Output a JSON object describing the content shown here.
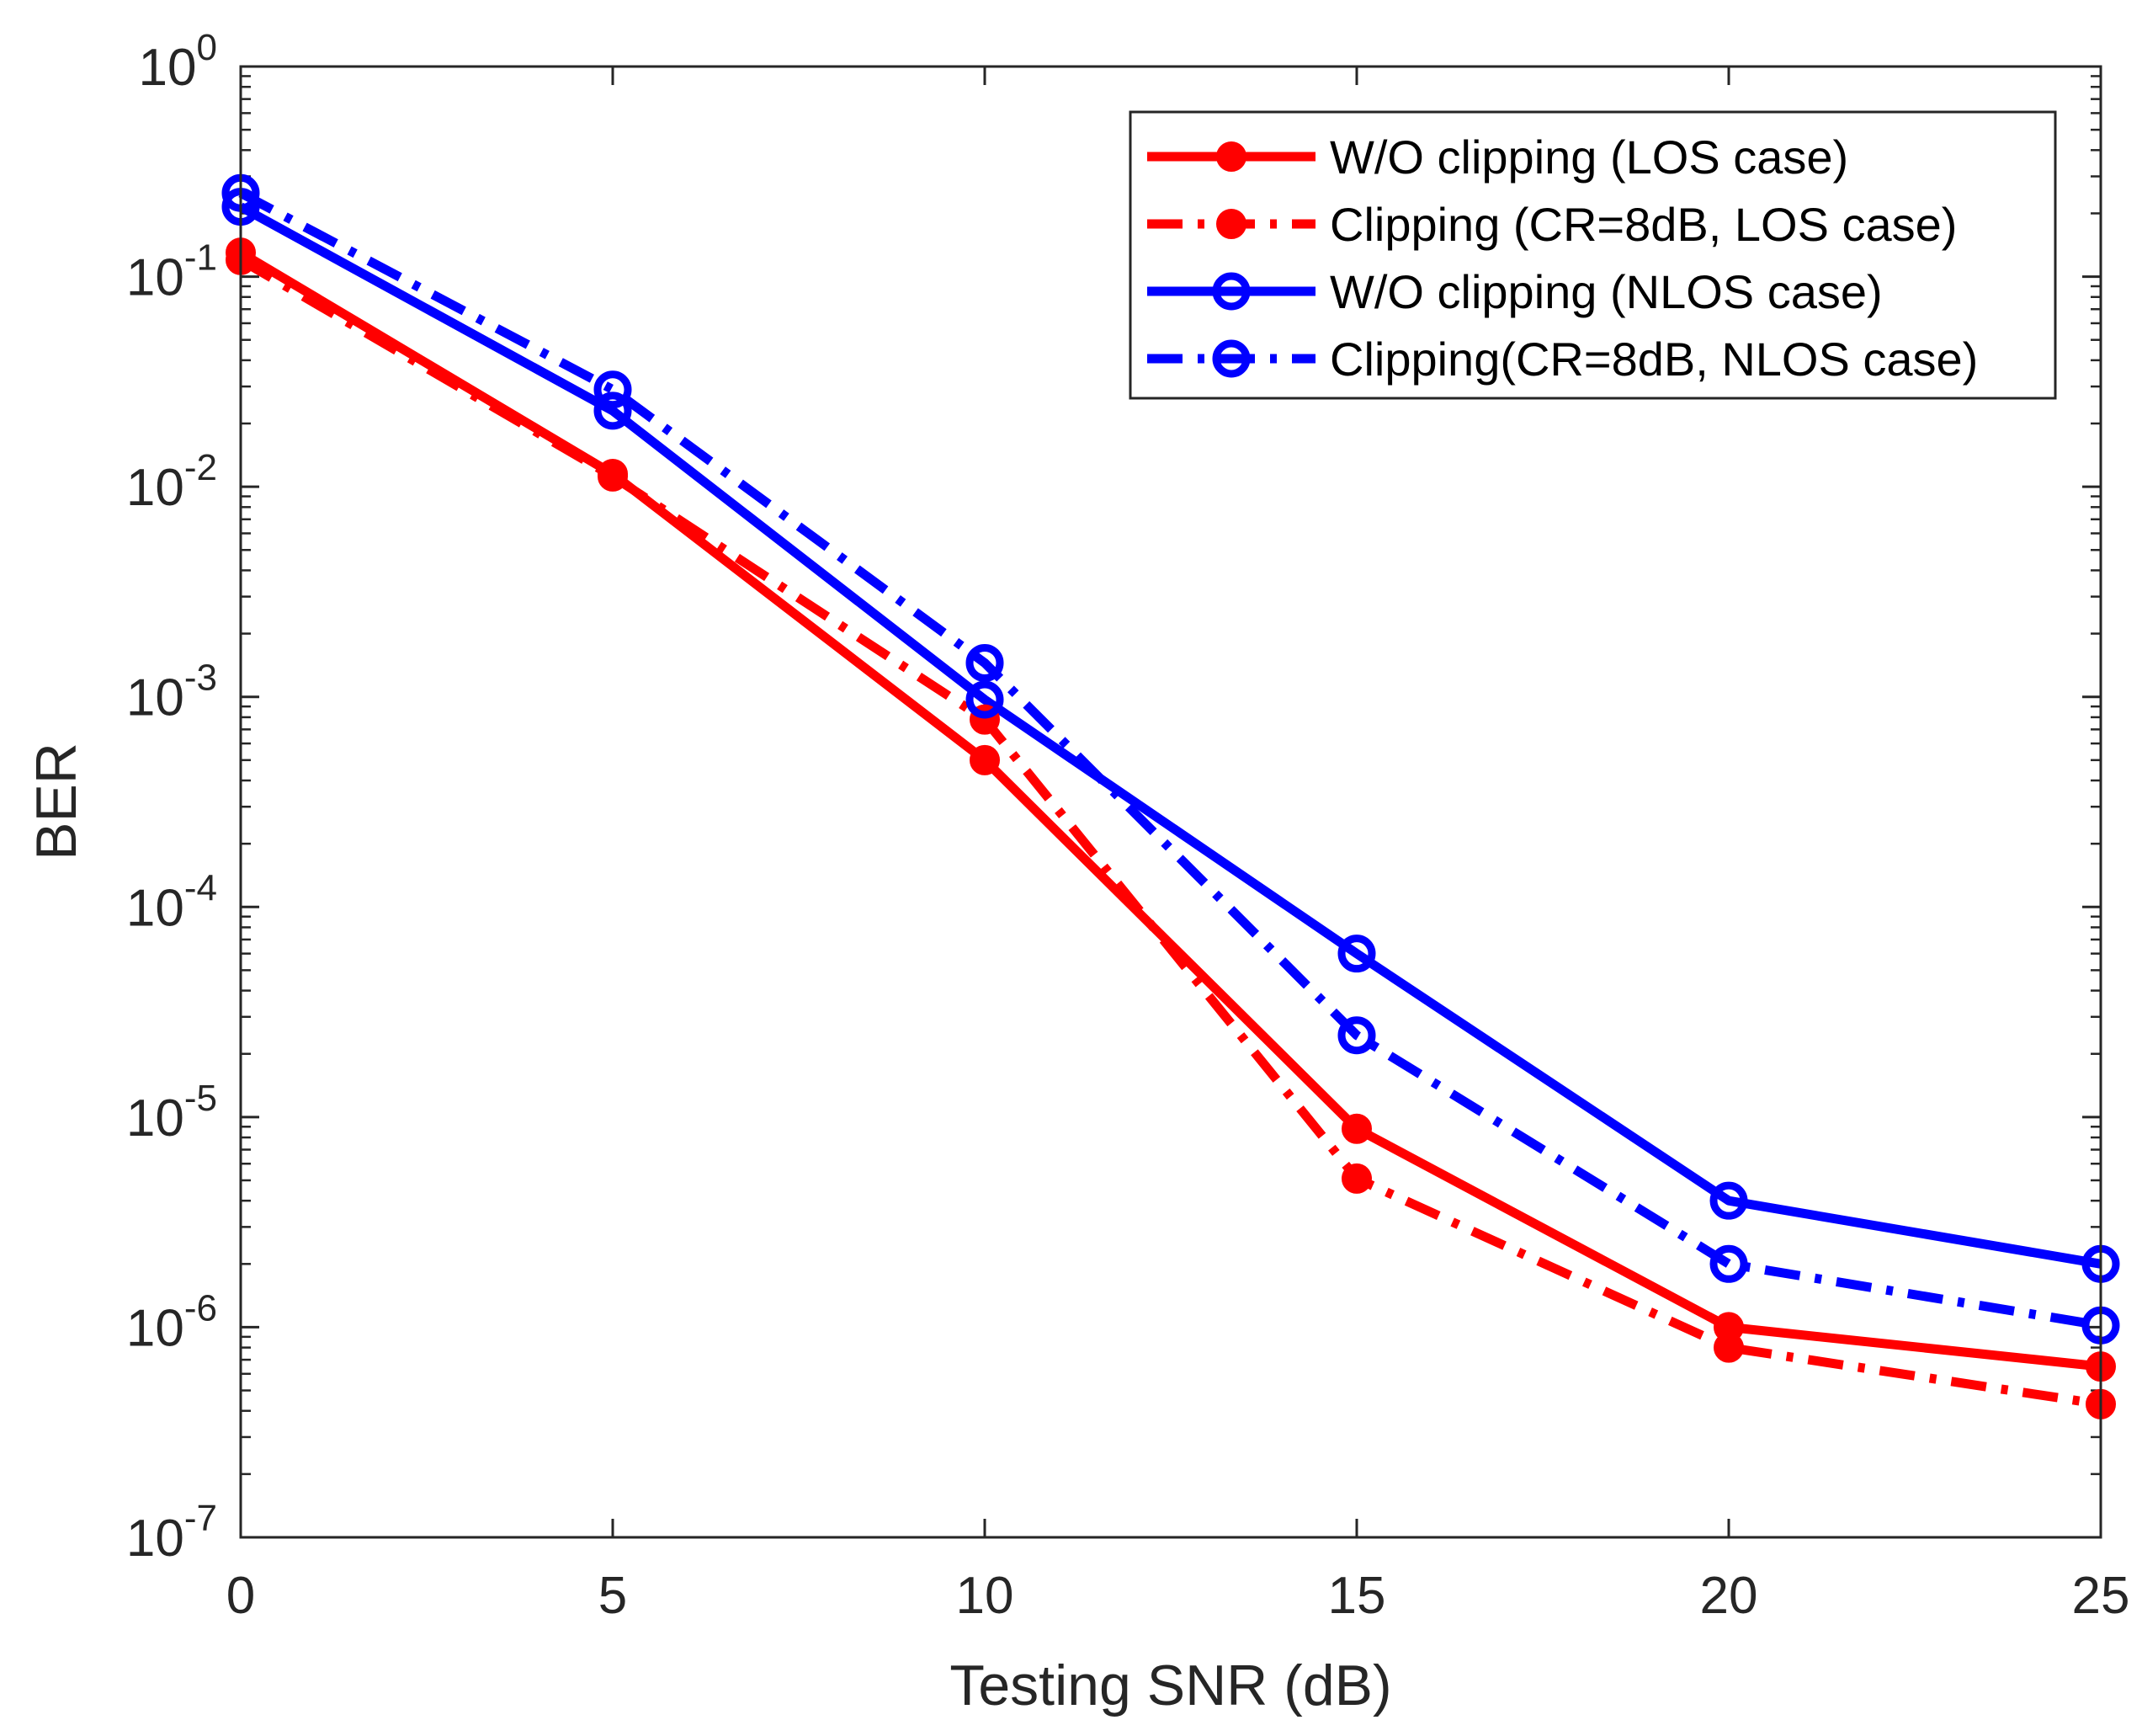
{
  "chart_data": {
    "type": "line",
    "title": "",
    "xlabel": "Testing SNR (dB)",
    "ylabel": "BER",
    "yscale": "log",
    "xlim": [
      0,
      25
    ],
    "ylim": [
      1e-07,
      1
    ],
    "xticks": [
      0,
      5,
      10,
      15,
      20,
      25
    ],
    "yticks": [
      {
        "value": 1,
        "base": "10",
        "exp": "0"
      },
      {
        "value": 0.1,
        "base": "10",
        "exp": "-1"
      },
      {
        "value": 0.01,
        "base": "10",
        "exp": "-2"
      },
      {
        "value": 0.001,
        "base": "10",
        "exp": "-3"
      },
      {
        "value": 0.0001,
        "base": "10",
        "exp": "-4"
      },
      {
        "value": 1e-05,
        "base": "10",
        "exp": "-5"
      },
      {
        "value": 1e-06,
        "base": "10",
        "exp": "-6"
      },
      {
        "value": 1e-07,
        "base": "10",
        "exp": "-7"
      }
    ],
    "grid": false,
    "legend_position": "top-right",
    "x": [
      0,
      5,
      10,
      15,
      20,
      25
    ],
    "series": [
      {
        "name": "W/O clipping (LOS case)",
        "color": "#ff0000",
        "dash": "solid",
        "marker": "filled-circle",
        "values": [
          0.13,
          0.0115,
          0.0005,
          8.8e-06,
          1e-06,
          6.5e-07
        ]
      },
      {
        "name": "Clipping (CR=8dB, LOS case)",
        "color": "#ff0000",
        "dash": "dashdot",
        "marker": "filled-circle",
        "values": [
          0.12,
          0.0112,
          0.00078,
          5.1e-06,
          8e-07,
          4.3e-07
        ]
      },
      {
        "name": "W/O clipping (NLOS case)",
        "color": "#0000ff",
        "dash": "solid",
        "marker": "open-circle",
        "values": [
          0.215,
          0.023,
          0.00097,
          6e-05,
          4e-06,
          2e-06
        ]
      },
      {
        "name": "Clipping(CR=8dB, NLOS case)",
        "color": "#0000ff",
        "dash": "dashdot",
        "marker": "open-circle",
        "values": [
          0.25,
          0.029,
          0.00145,
          2.45e-05,
          2e-06,
          1.02e-06
        ]
      }
    ]
  }
}
